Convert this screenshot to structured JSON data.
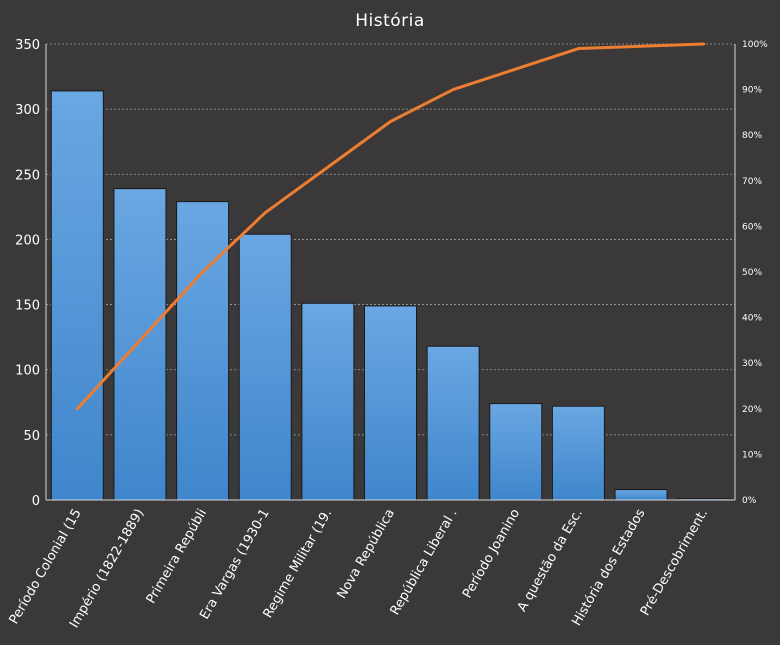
{
  "chart_data": {
    "type": "bar",
    "title": "História",
    "categories": [
      "Período Colonial (15",
      "Império (1822-1889)",
      "Primeira Repúbli",
      "Era Vargas (1930-1",
      "Regime Militar (19.",
      "Nova República",
      "República Liberal .",
      "Período Joanino",
      "A questão da Esc.",
      "História dos Estados",
      "Pré-Descobriment."
    ],
    "series": [
      {
        "type": "bar",
        "values": [
          314,
          239,
          229,
          204,
          151,
          149,
          118,
          74,
          72,
          8,
          1
        ]
      },
      {
        "type": "line",
        "axis": "right",
        "values": [
          0.2,
          0.35,
          0.5,
          0.63,
          0.73,
          0.83,
          0.9,
          0.945,
          0.99,
          0.995,
          1.0
        ]
      }
    ],
    "y_left": {
      "min": 0,
      "max": 350,
      "ticks": [
        "0",
        "50",
        "100",
        "150",
        "200",
        "250",
        "300",
        "350"
      ]
    },
    "y_right": {
      "min": 0,
      "max": 1,
      "ticks": [
        "0%",
        "10%",
        "20%",
        "30%",
        "40%",
        "50%",
        "60%",
        "70%",
        "80%",
        "90%",
        "100%"
      ]
    },
    "grid": true,
    "legend": "none",
    "colors": {
      "background": "#3a3838",
      "plot_background": "#3a3838",
      "bar_top": "#6aa7e2",
      "bar_bottom": "#3f86cc",
      "bar_stroke": "#1a1a1a",
      "line": "#ed7d31",
      "grid": "#a0a0a0",
      "axis": "#d9d9d9",
      "text": "#ffffff"
    }
  }
}
